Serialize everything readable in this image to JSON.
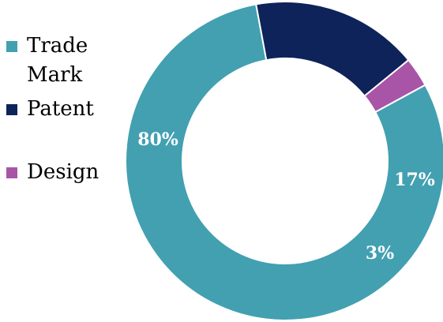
{
  "chart_data": {
    "type": "pie",
    "variant": "donut",
    "title": "",
    "legend_position": "left",
    "categories": [
      "Trade Mark",
      "Patent",
      "Design"
    ],
    "values": [
      80,
      17,
      3
    ],
    "data_labels": [
      "80%",
      "17%",
      "3%"
    ],
    "colors": [
      "#42A0B1",
      "#0E2359",
      "#A855A8"
    ],
    "unit": "%"
  }
}
